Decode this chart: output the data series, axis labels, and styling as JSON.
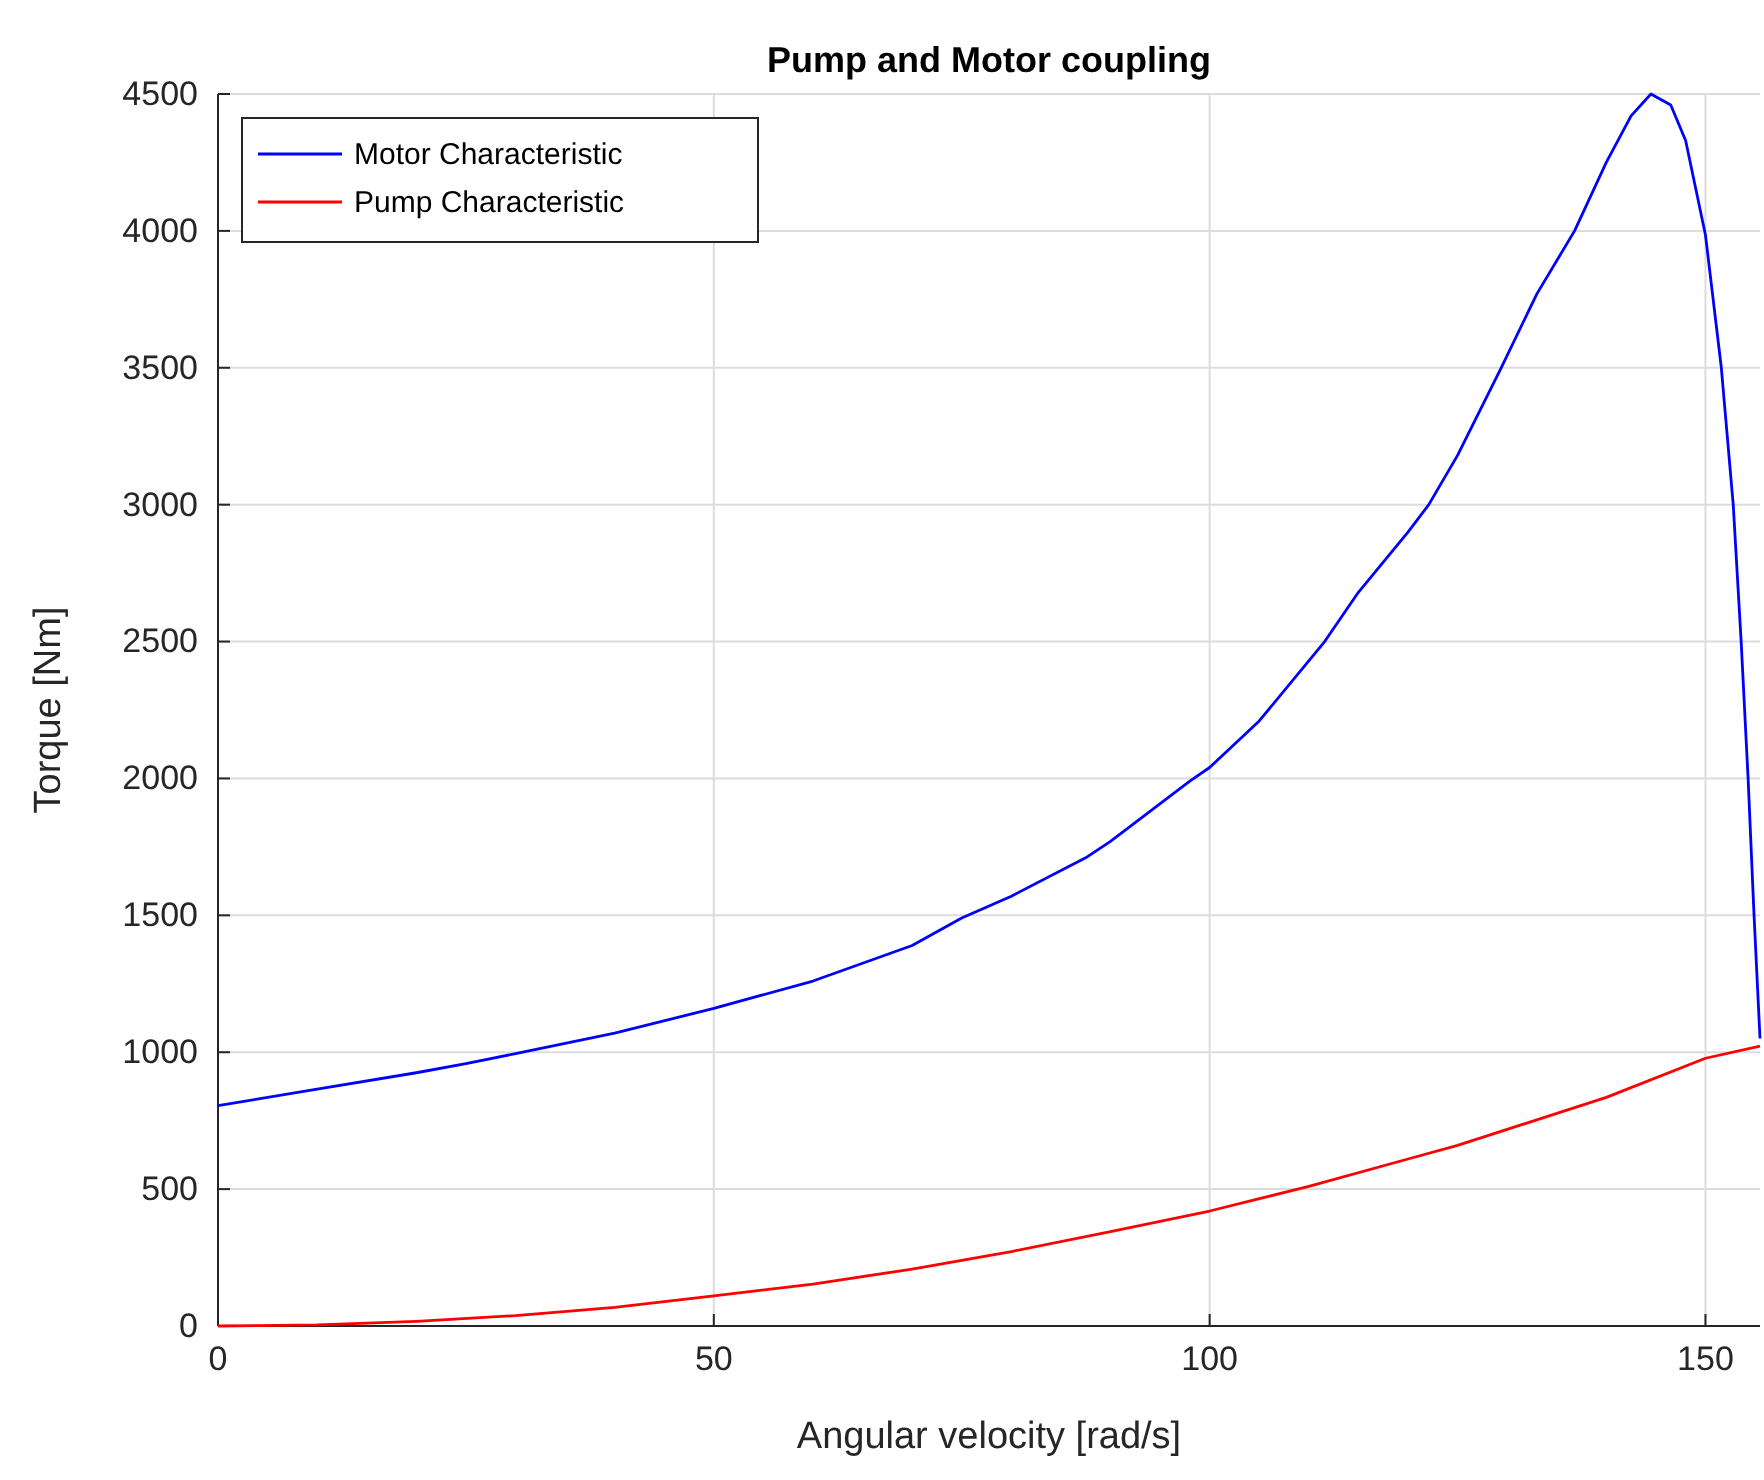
{
  "chart_data": {
    "type": "line",
    "title": "Pump and Motor coupling",
    "xlabel": "Angular velocity [rad/s]",
    "ylabel": "Torque [Nm]",
    "xlim": [
      0,
      155.5
    ],
    "xticks": [
      0,
      50,
      100,
      150
    ],
    "ylim": [
      0,
      4500
    ],
    "yticks": [
      0,
      500,
      1000,
      1500,
      2000,
      2500,
      3000,
      3500,
      4000,
      4500
    ],
    "grid": true,
    "legend": "top left",
    "series": [
      {
        "name": "Motor Characteristic",
        "color": "#0000ff",
        "x": [
          0,
          10,
          20,
          25,
          30,
          40,
          50,
          60,
          70,
          75,
          80,
          87.5,
          90,
          98,
          100,
          105,
          111.6,
          115,
          120,
          122.1,
          125,
          129.4,
          133,
          136.8,
          140,
          142.5,
          144.5,
          146.5,
          148,
          150,
          151.6,
          152.8,
          153.6,
          154.3,
          154.9,
          155.5
        ],
        "values": [
          805,
          865,
          925,
          958,
          995,
          1070,
          1160,
          1260,
          1390,
          1490,
          1570,
          1710,
          1770,
          1990,
          2040,
          2210,
          2500,
          2680,
          2900,
          3000,
          3180,
          3500,
          3770,
          4000,
          4250,
          4420,
          4500,
          4460,
          4330,
          3985,
          3500,
          3000,
          2500,
          2000,
          1500,
          1050
        ]
      },
      {
        "name": "Pump Characteristic",
        "color": "#ff0000",
        "x": [
          0,
          10,
          20,
          30,
          40,
          50,
          60,
          70,
          75,
          80,
          90,
          100,
          110,
          120,
          125,
          130,
          140,
          150,
          155.5
        ],
        "values": [
          0,
          4,
          17,
          38,
          68,
          110,
          153,
          208,
          240,
          272,
          345,
          420,
          510,
          610,
          660,
          718,
          835,
          978,
          1022
        ]
      }
    ]
  }
}
